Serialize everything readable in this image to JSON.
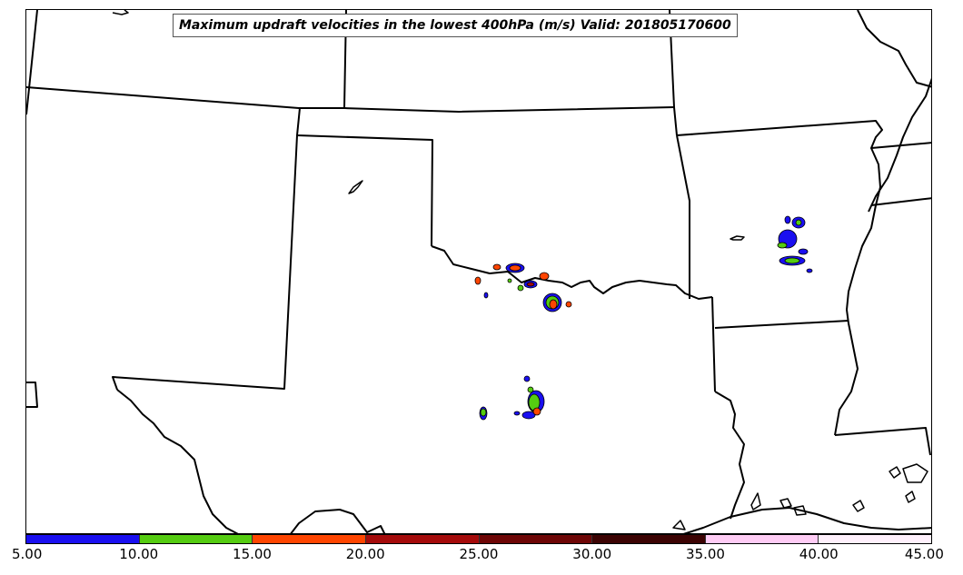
{
  "title": "Maximum updraft velocities in the lowest 400hPa (m/s) Valid: 201805170600",
  "colorbar": {
    "segments": [
      {
        "from": 5,
        "to": 10,
        "color": "#1a0ff0"
      },
      {
        "from": 10,
        "to": 15,
        "color": "#55cc11"
      },
      {
        "from": 15,
        "to": 20,
        "color": "#ff4500"
      },
      {
        "from": 20,
        "to": 25,
        "color": "#a50b0b"
      },
      {
        "from": 25,
        "to": 30,
        "color": "#6e0606"
      },
      {
        "from": 30,
        "to": 35,
        "color": "#3c0303"
      },
      {
        "from": 35,
        "to": 40,
        "color": "#ffccf5"
      },
      {
        "from": 40,
        "to": 45,
        "color": "#fff0fc"
      }
    ],
    "tick_labels": [
      "5.00",
      "10.00",
      "15.00",
      "20.00",
      "25.00",
      "30.00",
      "35.00",
      "40.00",
      "45.00"
    ]
  },
  "legend_colors": {
    "level_5_10": "#1a0ff0",
    "level_10_15": "#55cc11",
    "level_15_20": "#ff4500",
    "level_20_25": "#a50b0b"
  }
}
